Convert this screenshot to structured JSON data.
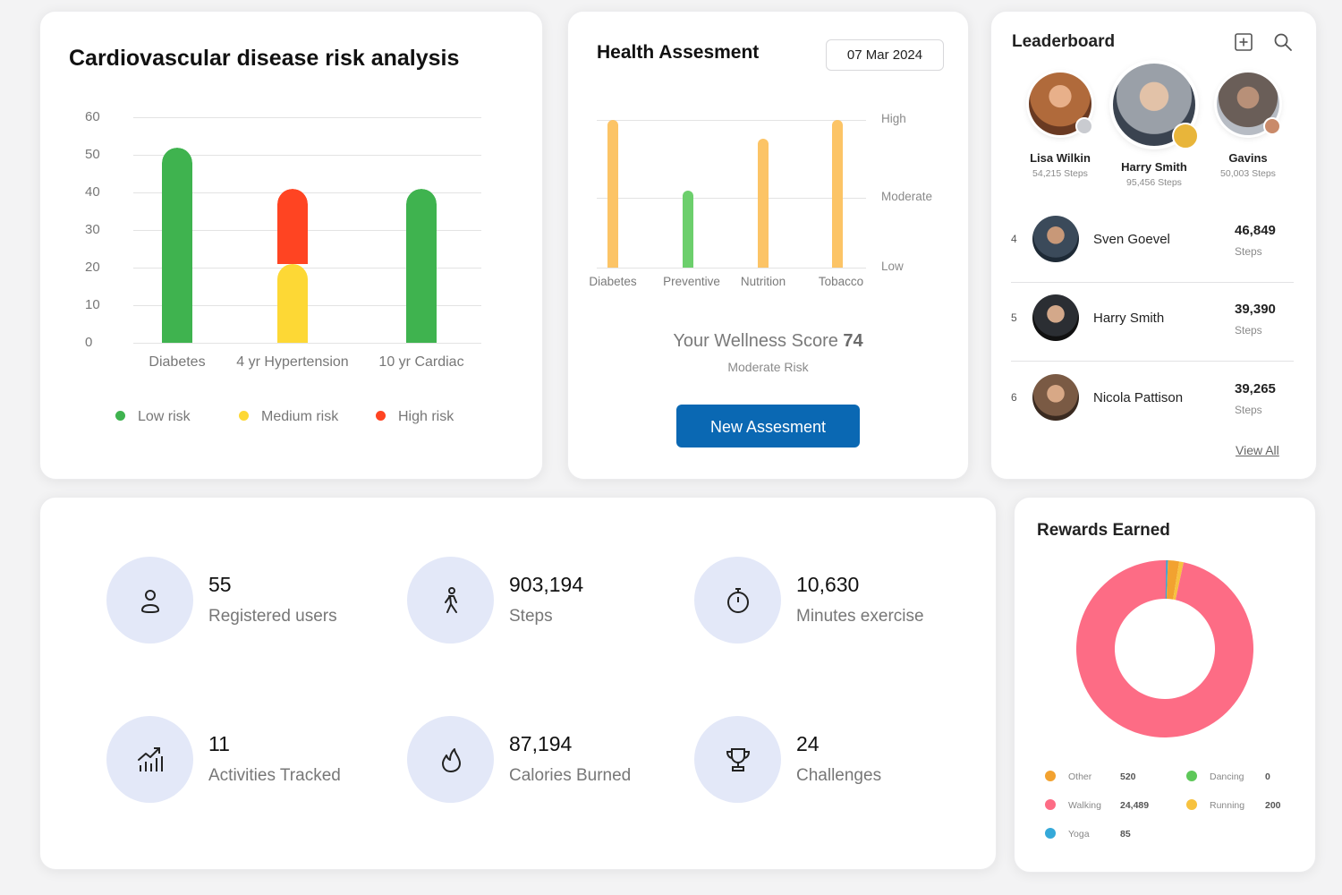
{
  "cvd": {
    "title": "Cardiovascular disease risk analysis",
    "chart_data": {
      "type": "bar",
      "stacked": true,
      "title": "Cardiovascular disease risk analysis",
      "categories": [
        "Diabetes",
        "4 yr Hypertension",
        "10 yr Cardiac"
      ],
      "series": [
        {
          "name": "Low risk",
          "color": "#3fb34f",
          "values": [
            52,
            0,
            41
          ]
        },
        {
          "name": "Medium risk",
          "color": "#fdd835",
          "values": [
            0,
            21,
            0
          ]
        },
        {
          "name": "High risk",
          "color": "#ff4422",
          "values": [
            0,
            20,
            0
          ]
        }
      ],
      "yticks": [
        60,
        50,
        40,
        30,
        20,
        10,
        0
      ],
      "ylim": [
        0,
        60
      ],
      "grid": true,
      "legend": "bottom"
    }
  },
  "health": {
    "title": "Health Assesment",
    "date": "07 Mar 2024",
    "chart_data": {
      "type": "bar",
      "categories": [
        "Diabetes",
        "Preventive",
        "Nutrition",
        "Tobacco"
      ],
      "values": [
        1.0,
        0.52,
        0.87,
        1.0
      ],
      "colors": [
        "#fcc466",
        "#6ccf6c",
        "#fcc466",
        "#fcc466"
      ],
      "levels": [
        "High",
        "Moderate",
        "Low"
      ],
      "ylim": [
        0,
        1
      ]
    },
    "score_label": "Your Wellness Score",
    "score_value": "74",
    "risk": "Moderate Risk",
    "button": "New Assesment"
  },
  "leaderboard": {
    "title": "Leaderboard",
    "podium": [
      {
        "name": "Lisa Wilkin",
        "steps": "54,215 Steps",
        "medal": "#c9cbd0",
        "avatar": "#b06a3b"
      },
      {
        "name": "Harry Smith",
        "steps": "95,456 Steps",
        "medal": "#e8b53a",
        "avatar": "#8a8f96"
      },
      {
        "name": "Gavins",
        "steps": "50,003 Steps",
        "medal": "#c98a6a",
        "avatar": "#5a4e48"
      }
    ],
    "rows": [
      {
        "rank": "4",
        "name": "Sven Goevel",
        "steps": "46,849",
        "unit": "Steps",
        "avatar": "#3b4a5a"
      },
      {
        "rank": "5",
        "name": "Harry Smith",
        "steps": "39,390",
        "unit": "Steps",
        "avatar": "#2b2e33"
      },
      {
        "rank": "6",
        "name": "Nicola Pattison",
        "steps": "39,265",
        "unit": "Steps",
        "avatar": "#7a5a44"
      }
    ],
    "view_all": "View All"
  },
  "stats": [
    {
      "value": "55",
      "label": "Registered users",
      "icon": "user-icon"
    },
    {
      "value": "903,194",
      "label": "Steps",
      "icon": "walking-icon"
    },
    {
      "value": "10,630",
      "label": "Minutes exercise",
      "icon": "stopwatch-icon"
    },
    {
      "value": "11",
      "label": "Activities Tracked",
      "icon": "chart-trend-icon"
    },
    {
      "value": "87,194",
      "label": "Calories Burned",
      "icon": "flame-icon"
    },
    {
      "value": "24",
      "label": "Challenges",
      "icon": "trophy-icon"
    }
  ],
  "rewards": {
    "title": "Rewards Earned",
    "chart_data": {
      "type": "pie",
      "donut": true,
      "title": "Rewards Earned",
      "categories": [
        "Other",
        "Walking",
        "Yoga",
        "Dancing",
        "Running"
      ],
      "values": [
        520,
        24489,
        85,
        0,
        200
      ],
      "colors": [
        "#f2a230",
        "#fd6c85",
        "#35a9d9",
        "#5ec85a",
        "#f7c23f"
      ]
    },
    "legend": [
      {
        "label": "Other",
        "value": "520",
        "color": "#f2a230"
      },
      {
        "label": "Dancing",
        "value": "0",
        "color": "#5ec85a"
      },
      {
        "label": "Walking",
        "value": "24,489",
        "color": "#fd6c85"
      },
      {
        "label": "Running",
        "value": "200",
        "color": "#f7c23f"
      },
      {
        "label": "Yoga",
        "value": "85",
        "color": "#35a9d9"
      }
    ]
  }
}
